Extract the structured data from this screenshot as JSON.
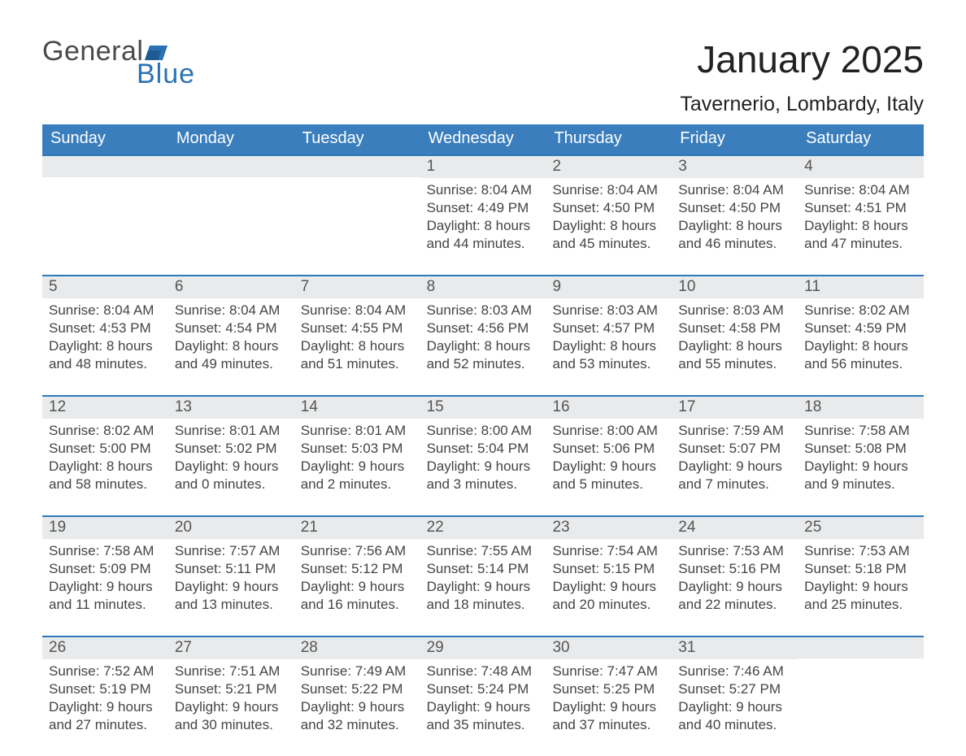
{
  "logo": {
    "brand1": "General",
    "brand2": "Blue",
    "color_text": "#4a4a4a",
    "color_blue": "#2a72b5"
  },
  "title": {
    "month": "January 2025",
    "location": "Tavernerio, Lombardy, Italy"
  },
  "styling": {
    "header_bg": "#3a7ebd",
    "header_fg": "#ffffff",
    "row_top_line": "#2f79b9",
    "daynum_bg": "#e9eaeb",
    "daynum_fg": "#555555",
    "body_text": "#444444",
    "page_bg": "#ffffff",
    "weekday_fontsize": 20,
    "daynum_fontsize": 19,
    "body_fontsize": 17,
    "title_fontsize": 46,
    "location_fontsize": 25
  },
  "weekdays": [
    "Sunday",
    "Monday",
    "Tuesday",
    "Wednesday",
    "Thursday",
    "Friday",
    "Saturday"
  ],
  "weeks": [
    [
      {
        "day": "",
        "sunrise": "",
        "sunset": "",
        "daylight1": "",
        "daylight2": ""
      },
      {
        "day": "",
        "sunrise": "",
        "sunset": "",
        "daylight1": "",
        "daylight2": ""
      },
      {
        "day": "",
        "sunrise": "",
        "sunset": "",
        "daylight1": "",
        "daylight2": ""
      },
      {
        "day": "1",
        "sunrise": "Sunrise: 8:04 AM",
        "sunset": "Sunset: 4:49 PM",
        "daylight1": "Daylight: 8 hours",
        "daylight2": "and 44 minutes."
      },
      {
        "day": "2",
        "sunrise": "Sunrise: 8:04 AM",
        "sunset": "Sunset: 4:50 PM",
        "daylight1": "Daylight: 8 hours",
        "daylight2": "and 45 minutes."
      },
      {
        "day": "3",
        "sunrise": "Sunrise: 8:04 AM",
        "sunset": "Sunset: 4:50 PM",
        "daylight1": "Daylight: 8 hours",
        "daylight2": "and 46 minutes."
      },
      {
        "day": "4",
        "sunrise": "Sunrise: 8:04 AM",
        "sunset": "Sunset: 4:51 PM",
        "daylight1": "Daylight: 8 hours",
        "daylight2": "and 47 minutes."
      }
    ],
    [
      {
        "day": "5",
        "sunrise": "Sunrise: 8:04 AM",
        "sunset": "Sunset: 4:53 PM",
        "daylight1": "Daylight: 8 hours",
        "daylight2": "and 48 minutes."
      },
      {
        "day": "6",
        "sunrise": "Sunrise: 8:04 AM",
        "sunset": "Sunset: 4:54 PM",
        "daylight1": "Daylight: 8 hours",
        "daylight2": "and 49 minutes."
      },
      {
        "day": "7",
        "sunrise": "Sunrise: 8:04 AM",
        "sunset": "Sunset: 4:55 PM",
        "daylight1": "Daylight: 8 hours",
        "daylight2": "and 51 minutes."
      },
      {
        "day": "8",
        "sunrise": "Sunrise: 8:03 AM",
        "sunset": "Sunset: 4:56 PM",
        "daylight1": "Daylight: 8 hours",
        "daylight2": "and 52 minutes."
      },
      {
        "day": "9",
        "sunrise": "Sunrise: 8:03 AM",
        "sunset": "Sunset: 4:57 PM",
        "daylight1": "Daylight: 8 hours",
        "daylight2": "and 53 minutes."
      },
      {
        "day": "10",
        "sunrise": "Sunrise: 8:03 AM",
        "sunset": "Sunset: 4:58 PM",
        "daylight1": "Daylight: 8 hours",
        "daylight2": "and 55 minutes."
      },
      {
        "day": "11",
        "sunrise": "Sunrise: 8:02 AM",
        "sunset": "Sunset: 4:59 PM",
        "daylight1": "Daylight: 8 hours",
        "daylight2": "and 56 minutes."
      }
    ],
    [
      {
        "day": "12",
        "sunrise": "Sunrise: 8:02 AM",
        "sunset": "Sunset: 5:00 PM",
        "daylight1": "Daylight: 8 hours",
        "daylight2": "and 58 minutes."
      },
      {
        "day": "13",
        "sunrise": "Sunrise: 8:01 AM",
        "sunset": "Sunset: 5:02 PM",
        "daylight1": "Daylight: 9 hours",
        "daylight2": "and 0 minutes."
      },
      {
        "day": "14",
        "sunrise": "Sunrise: 8:01 AM",
        "sunset": "Sunset: 5:03 PM",
        "daylight1": "Daylight: 9 hours",
        "daylight2": "and 2 minutes."
      },
      {
        "day": "15",
        "sunrise": "Sunrise: 8:00 AM",
        "sunset": "Sunset: 5:04 PM",
        "daylight1": "Daylight: 9 hours",
        "daylight2": "and 3 minutes."
      },
      {
        "day": "16",
        "sunrise": "Sunrise: 8:00 AM",
        "sunset": "Sunset: 5:06 PM",
        "daylight1": "Daylight: 9 hours",
        "daylight2": "and 5 minutes."
      },
      {
        "day": "17",
        "sunrise": "Sunrise: 7:59 AM",
        "sunset": "Sunset: 5:07 PM",
        "daylight1": "Daylight: 9 hours",
        "daylight2": "and 7 minutes."
      },
      {
        "day": "18",
        "sunrise": "Sunrise: 7:58 AM",
        "sunset": "Sunset: 5:08 PM",
        "daylight1": "Daylight: 9 hours",
        "daylight2": "and 9 minutes."
      }
    ],
    [
      {
        "day": "19",
        "sunrise": "Sunrise: 7:58 AM",
        "sunset": "Sunset: 5:09 PM",
        "daylight1": "Daylight: 9 hours",
        "daylight2": "and 11 minutes."
      },
      {
        "day": "20",
        "sunrise": "Sunrise: 7:57 AM",
        "sunset": "Sunset: 5:11 PM",
        "daylight1": "Daylight: 9 hours",
        "daylight2": "and 13 minutes."
      },
      {
        "day": "21",
        "sunrise": "Sunrise: 7:56 AM",
        "sunset": "Sunset: 5:12 PM",
        "daylight1": "Daylight: 9 hours",
        "daylight2": "and 16 minutes."
      },
      {
        "day": "22",
        "sunrise": "Sunrise: 7:55 AM",
        "sunset": "Sunset: 5:14 PM",
        "daylight1": "Daylight: 9 hours",
        "daylight2": "and 18 minutes."
      },
      {
        "day": "23",
        "sunrise": "Sunrise: 7:54 AM",
        "sunset": "Sunset: 5:15 PM",
        "daylight1": "Daylight: 9 hours",
        "daylight2": "and 20 minutes."
      },
      {
        "day": "24",
        "sunrise": "Sunrise: 7:53 AM",
        "sunset": "Sunset: 5:16 PM",
        "daylight1": "Daylight: 9 hours",
        "daylight2": "and 22 minutes."
      },
      {
        "day": "25",
        "sunrise": "Sunrise: 7:53 AM",
        "sunset": "Sunset: 5:18 PM",
        "daylight1": "Daylight: 9 hours",
        "daylight2": "and 25 minutes."
      }
    ],
    [
      {
        "day": "26",
        "sunrise": "Sunrise: 7:52 AM",
        "sunset": "Sunset: 5:19 PM",
        "daylight1": "Daylight: 9 hours",
        "daylight2": "and 27 minutes."
      },
      {
        "day": "27",
        "sunrise": "Sunrise: 7:51 AM",
        "sunset": "Sunset: 5:21 PM",
        "daylight1": "Daylight: 9 hours",
        "daylight2": "and 30 minutes."
      },
      {
        "day": "28",
        "sunrise": "Sunrise: 7:49 AM",
        "sunset": "Sunset: 5:22 PM",
        "daylight1": "Daylight: 9 hours",
        "daylight2": "and 32 minutes."
      },
      {
        "day": "29",
        "sunrise": "Sunrise: 7:48 AM",
        "sunset": "Sunset: 5:24 PM",
        "daylight1": "Daylight: 9 hours",
        "daylight2": "and 35 minutes."
      },
      {
        "day": "30",
        "sunrise": "Sunrise: 7:47 AM",
        "sunset": "Sunset: 5:25 PM",
        "daylight1": "Daylight: 9 hours",
        "daylight2": "and 37 minutes."
      },
      {
        "day": "31",
        "sunrise": "Sunrise: 7:46 AM",
        "sunset": "Sunset: 5:27 PM",
        "daylight1": "Daylight: 9 hours",
        "daylight2": "and 40 minutes."
      },
      {
        "day": "",
        "sunrise": "",
        "sunset": "",
        "daylight1": "",
        "daylight2": ""
      }
    ]
  ]
}
